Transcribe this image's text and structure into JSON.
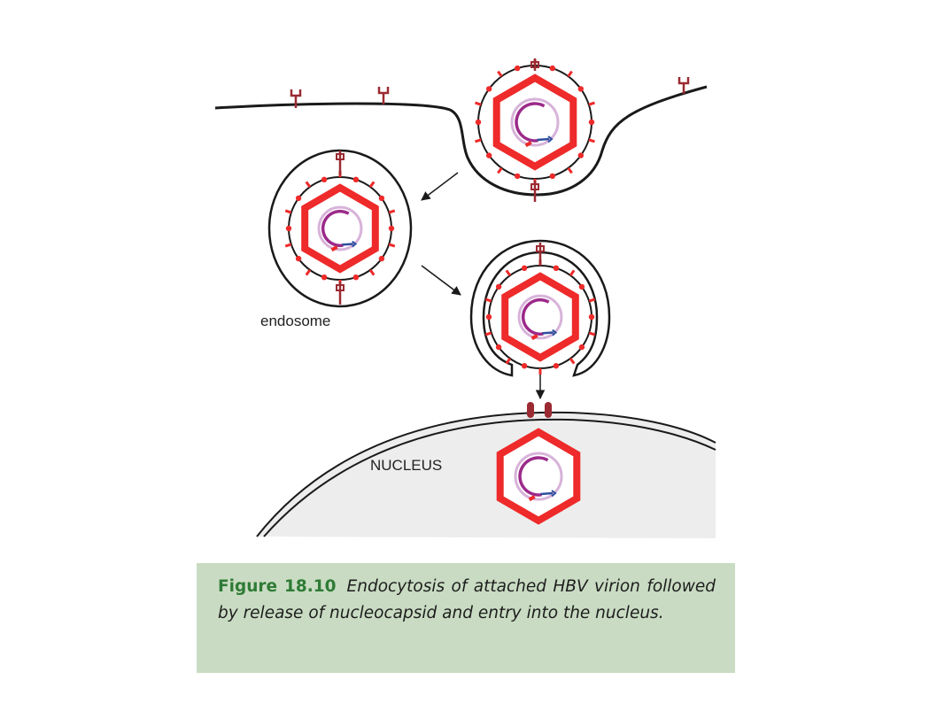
{
  "labels": {
    "endosome": "endosome",
    "nucleus": "NUCLEUS"
  },
  "caption": {
    "figure_label": "Figure 18.10",
    "text": "Endocytosis of attached HBV virion followed by release of nucleocapsid and entry into the nucleus."
  },
  "colors": {
    "capsid_red": "#ee2a2a",
    "receptor_dark_red": "#9b2a32",
    "genome_purple": "#9c2a8a",
    "genome_light": "#d7b3d9",
    "arrow_blue": "#2f4f9f",
    "membrane_black": "#1a1a1a",
    "nucleus_fill": "#ededed",
    "caption_bg": "#c9dcc3",
    "caption_label_green": "#2f7b36"
  }
}
